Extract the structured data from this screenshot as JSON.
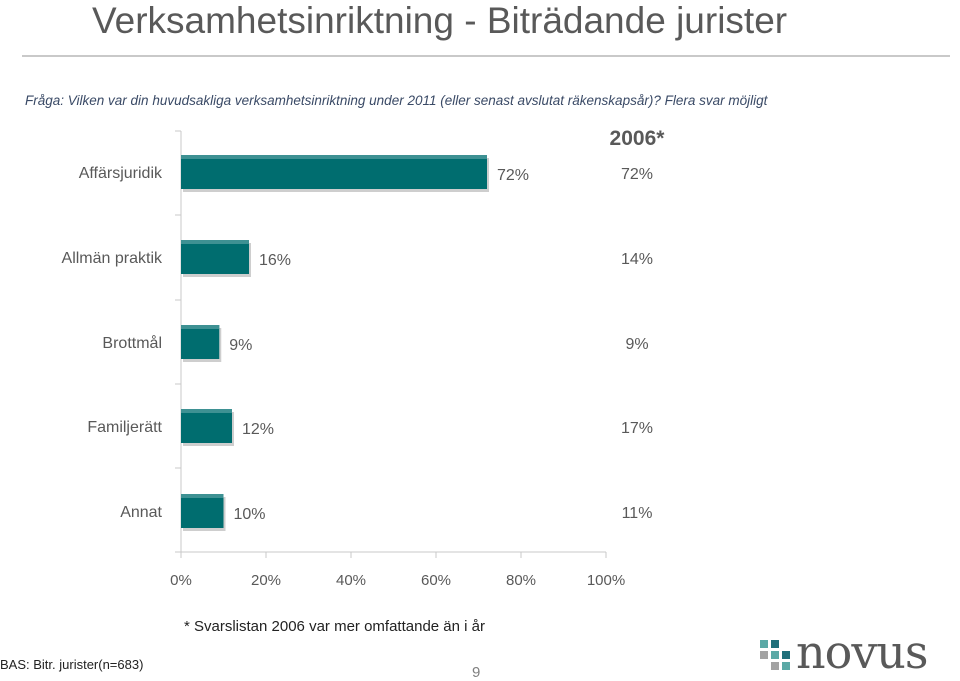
{
  "header": {
    "title": "Verksamhetsinriktning - Biträdande jurister",
    "question": "Fråga: Vilken var din huvudsakliga verksamhetsinriktning under 2011 (eller senast avslutat räkenskapsår)? Flera svar möjligt"
  },
  "chart_data": {
    "type": "bar",
    "orientation": "horizontal",
    "categories": [
      "Affärsjuridik",
      "Allmän praktik",
      "Brottmål",
      "Familjerätt",
      "Annat"
    ],
    "series": [
      {
        "values": [
          72,
          16,
          9,
          12,
          10
        ]
      }
    ],
    "data_labels": [
      "72%",
      "16%",
      "9%",
      "12%",
      "10%"
    ],
    "comparison_column": {
      "title": "2006*",
      "values": [
        72,
        14,
        9,
        17,
        11
      ],
      "labels": [
        "72%",
        "14%",
        "9%",
        "17%",
        "11%"
      ]
    },
    "xlim": [
      0,
      100
    ],
    "x_ticks": [
      "0%",
      "20%",
      "40%",
      "60%",
      "80%",
      "100%"
    ],
    "bar_color": "#006d6f",
    "grid": false
  },
  "footer": {
    "footnote": "* Svarslistan 2006 var mer omfattande än i år",
    "base": "BAS: Bitr. jurister(n=683)",
    "page": "9"
  },
  "logo": {
    "text": "novus",
    "colors": [
      "#5ba9a6",
      "#1f6f7a",
      "#a3a3a3"
    ]
  }
}
